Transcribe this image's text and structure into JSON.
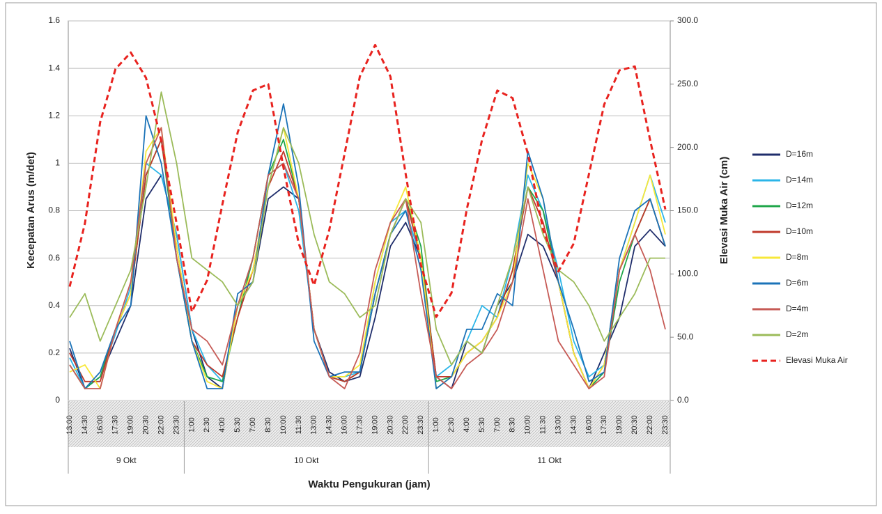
{
  "chart_data": {
    "type": "line",
    "y_label": "Kecepatan Arus (m/det)",
    "y2_label": "Elevasi Muka Air (cm)",
    "x_label": "Waktu Pengukuran (jam)",
    "x_groups": [
      "9 Okt",
      "10 Okt",
      "11 Okt"
    ],
    "categories": [
      "13:00",
      "14:30",
      "16:00",
      "17:30",
      "19:00",
      "20:30",
      "22:00",
      "23:30",
      "1:00",
      "2:30",
      "4:00",
      "5:30",
      "7:00",
      "8:30",
      "10:00",
      "11:30",
      "13:00",
      "14:30",
      "16:00",
      "17:30",
      "19:00",
      "20:30",
      "22:00",
      "23:30",
      "1:00",
      "2:30",
      "4:00",
      "5:30",
      "7:00",
      "8:30",
      "10:00",
      "11:30",
      "13:00",
      "14:30",
      "16:00",
      "17:30",
      "19:00",
      "20:30",
      "22:00",
      "23:30"
    ],
    "ylim": [
      0,
      1.6
    ],
    "yticks": [
      0,
      0.2,
      0.4,
      0.6,
      0.8,
      1,
      1.2,
      1.4,
      1.6
    ],
    "y2lim": [
      0,
      300
    ],
    "y2ticks": [
      {
        "value": 0,
        "label": "0.0"
      },
      {
        "value": 50,
        "label": "50.0"
      },
      {
        "value": 100,
        "label": "100.0"
      },
      {
        "value": 150,
        "label": "150.0"
      },
      {
        "value": 200,
        "label": "200.0"
      },
      {
        "value": 250,
        "label": "250.0"
      },
      {
        "value": 300,
        "label": "300.0"
      }
    ],
    "grid": true,
    "legend": "right",
    "series": [
      {
        "name": "D=16m",
        "color": "#1f2d6b",
        "values": [
          0.22,
          0.05,
          0.1,
          0.25,
          0.4,
          0.85,
          0.95,
          0.7,
          0.3,
          0.1,
          0.05,
          0.4,
          0.5,
          0.85,
          0.9,
          0.85,
          0.3,
          0.12,
          0.08,
          0.1,
          0.35,
          0.65,
          0.75,
          0.6,
          0.1,
          0.05,
          0.25,
          0.2,
          0.4,
          0.5,
          0.7,
          0.65,
          0.5,
          0.2,
          0.05,
          0.2,
          0.35,
          0.65,
          0.72,
          0.65
        ]
      },
      {
        "name": "D=14m",
        "color": "#2bb5e8",
        "values": [
          0.18,
          0.05,
          0.1,
          0.28,
          0.48,
          1.0,
          0.95,
          0.7,
          0.3,
          0.15,
          0.08,
          0.4,
          0.6,
          0.95,
          1.0,
          0.8,
          0.3,
          0.1,
          0.1,
          0.12,
          0.5,
          0.75,
          0.8,
          0.6,
          0.1,
          0.15,
          0.25,
          0.4,
          0.35,
          0.6,
          0.95,
          0.8,
          0.55,
          0.25,
          0.1,
          0.15,
          0.55,
          0.75,
          0.95,
          0.75
        ]
      },
      {
        "name": "D=12m",
        "color": "#1fa64a",
        "values": [
          0.15,
          0.05,
          0.1,
          0.3,
          0.45,
          0.95,
          1.1,
          0.6,
          0.25,
          0.1,
          0.08,
          0.35,
          0.6,
          0.95,
          1.1,
          0.85,
          0.3,
          0.1,
          0.08,
          0.12,
          0.45,
          0.7,
          0.85,
          0.65,
          0.08,
          0.1,
          0.2,
          0.25,
          0.35,
          0.55,
          0.9,
          0.8,
          0.5,
          0.2,
          0.05,
          0.12,
          0.5,
          0.7,
          0.85,
          0.65
        ]
      },
      {
        "name": "D=10m",
        "color": "#c0392b",
        "values": [
          0.2,
          0.08,
          0.08,
          0.3,
          0.45,
          0.95,
          1.1,
          0.65,
          0.25,
          0.15,
          0.1,
          0.35,
          0.55,
          0.9,
          1.05,
          0.85,
          0.3,
          0.1,
          0.08,
          0.12,
          0.45,
          0.7,
          0.85,
          0.6,
          0.1,
          0.1,
          0.2,
          0.25,
          0.35,
          0.55,
          0.9,
          0.75,
          0.5,
          0.2,
          0.05,
          0.15,
          0.55,
          0.7,
          0.85,
          0.65
        ]
      },
      {
        "name": "D=8m",
        "color": "#f7e83a",
        "values": [
          0.12,
          0.15,
          0.05,
          0.3,
          0.45,
          1.05,
          1.15,
          0.65,
          0.25,
          0.08,
          0.05,
          0.4,
          0.55,
          0.9,
          1.15,
          0.85,
          0.3,
          0.1,
          0.1,
          0.15,
          0.5,
          0.75,
          0.9,
          0.6,
          0.05,
          0.1,
          0.2,
          0.25,
          0.35,
          0.5,
          1.0,
          0.85,
          0.5,
          0.2,
          0.05,
          0.15,
          0.55,
          0.75,
          0.95,
          0.7
        ]
      },
      {
        "name": "D=6m",
        "color": "#1b73b8",
        "values": [
          0.25,
          0.05,
          0.12,
          0.3,
          0.4,
          1.2,
          1.0,
          0.6,
          0.25,
          0.05,
          0.05,
          0.45,
          0.5,
          0.95,
          1.25,
          0.9,
          0.25,
          0.1,
          0.12,
          0.12,
          0.45,
          0.7,
          0.8,
          0.55,
          0.05,
          0.1,
          0.3,
          0.3,
          0.45,
          0.4,
          1.05,
          0.85,
          0.5,
          0.3,
          0.08,
          0.12,
          0.6,
          0.8,
          0.85,
          0.65
        ]
      },
      {
        "name": "D=4m",
        "color": "#c65a55",
        "values": [
          0.15,
          0.05,
          0.05,
          0.3,
          0.5,
          1.0,
          1.15,
          0.6,
          0.3,
          0.25,
          0.15,
          0.4,
          0.6,
          0.95,
          1.0,
          0.85,
          0.3,
          0.1,
          0.05,
          0.2,
          0.55,
          0.75,
          0.85,
          0.45,
          0.1,
          0.05,
          0.15,
          0.2,
          0.3,
          0.5,
          0.85,
          0.55,
          0.25,
          0.15,
          0.05,
          0.1,
          0.55,
          0.7,
          0.55,
          0.3
        ]
      },
      {
        "name": "D=2m",
        "color": "#9bbb59",
        "values": [
          0.35,
          0.45,
          0.25,
          0.4,
          0.55,
          0.9,
          1.3,
          1.0,
          0.6,
          0.55,
          0.5,
          0.4,
          0.5,
          0.9,
          1.15,
          1.0,
          0.7,
          0.5,
          0.45,
          0.35,
          0.4,
          0.7,
          0.85,
          0.75,
          0.3,
          0.15,
          0.25,
          0.2,
          0.4,
          0.6,
          0.9,
          0.7,
          0.55,
          0.5,
          0.4,
          0.25,
          0.35,
          0.45,
          0.6,
          0.6
        ]
      },
      {
        "name": "Elevasi Muka Air",
        "color": "#e8231f",
        "dashed": true,
        "axis": "y2",
        "values": [
          90,
          140,
          220,
          262,
          275,
          255,
          205,
          140,
          70,
          95,
          155,
          212,
          245,
          250,
          184,
          124,
          91,
          135,
          195,
          256,
          281,
          256,
          179,
          107,
          66,
          85,
          151,
          206,
          245,
          239,
          195,
          135,
          102,
          124,
          179,
          234,
          261,
          264,
          206,
          151
        ]
      }
    ]
  }
}
